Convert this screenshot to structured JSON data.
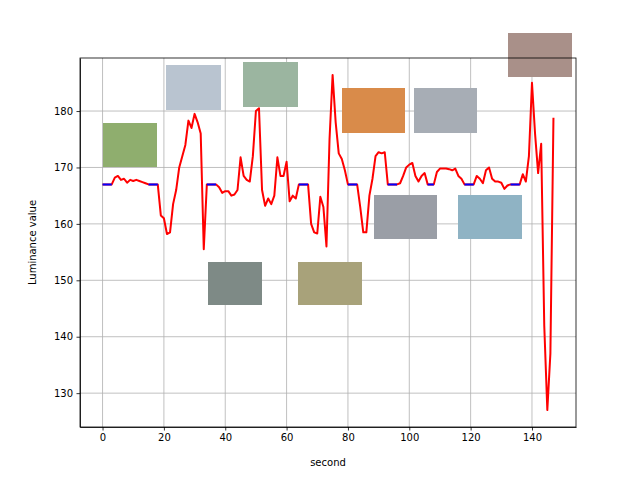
{
  "chart_data": {
    "type": "line",
    "x_label": "second",
    "y_label": "Luminance value",
    "x": [
      0,
      3,
      4,
      5,
      6,
      7,
      8,
      9,
      10,
      11,
      12,
      13,
      14,
      15,
      18,
      19,
      20,
      21,
      22,
      23,
      24,
      25,
      26,
      27,
      28,
      29,
      30,
      31,
      32,
      33,
      34,
      37,
      38,
      39,
      40,
      41,
      42,
      43,
      44,
      45,
      46,
      47,
      48,
      49,
      50,
      51,
      52,
      53,
      54,
      55,
      56,
      57,
      58,
      59,
      60,
      61,
      62,
      63,
      64,
      67,
      68,
      69,
      70,
      71,
      72,
      73,
      74,
      75,
      76,
      77,
      78,
      79,
      80,
      83,
      84,
      85,
      86,
      87,
      88,
      89,
      90,
      91,
      92,
      93,
      96,
      97,
      98,
      99,
      100,
      101,
      102,
      103,
      104,
      105,
      106,
      108,
      109,
      110,
      111,
      112,
      113,
      114,
      115,
      116,
      117,
      118,
      121,
      122,
      123,
      124,
      125,
      126,
      127,
      128,
      129,
      130,
      131,
      132,
      133,
      136,
      137,
      138,
      139,
      140,
      141,
      142,
      143,
      144,
      145,
      146,
      147
    ],
    "series": [
      {
        "color": "#ff0000",
        "values": [
          167,
          167,
          168.2,
          168.5,
          167.8,
          168,
          167.3,
          167.8,
          167.6,
          167.8,
          167.6,
          167.4,
          167.2,
          167,
          167,
          161.5,
          161,
          158.2,
          158.5,
          163.5,
          166,
          170,
          172,
          174,
          178.3,
          177,
          179.5,
          178,
          176,
          155.5,
          167,
          167,
          166.5,
          165.5,
          165.8,
          165.8,
          165,
          165.2,
          166,
          171.8,
          168.5,
          167.8,
          167.5,
          172,
          180,
          180.5,
          166,
          163.2,
          164.5,
          163.5,
          165,
          171.8,
          168.5,
          168.5,
          171,
          164,
          165,
          164.5,
          167,
          167,
          160,
          158.5,
          158.3,
          164.8,
          163,
          156,
          175,
          186.4,
          178,
          172.5,
          171.5,
          169.5,
          167,
          167,
          163,
          158.5,
          158.5,
          165,
          168,
          172,
          172.7,
          172.5,
          172.7,
          167,
          167,
          167.2,
          168.5,
          170,
          170.5,
          170.8,
          168.5,
          167.5,
          168.5,
          169,
          167,
          167,
          169.2,
          169.8,
          169.8,
          169.8,
          169.7,
          169.5,
          169.8,
          168.5,
          168,
          167,
          167,
          168.5,
          168,
          167.2,
          169.5,
          170,
          168,
          167.5,
          167.5,
          167.3,
          166.2,
          166.8,
          167,
          167,
          168.8,
          167.5,
          172,
          185,
          176,
          169,
          174.2,
          142,
          127,
          137,
          178.8
        ]
      },
      {
        "color": "#0000ff",
        "values": [
          167,
          167,
          null,
          null,
          null,
          null,
          null,
          null,
          null,
          null,
          null,
          null,
          null,
          167,
          167,
          null,
          null,
          null,
          null,
          null,
          null,
          null,
          null,
          null,
          null,
          null,
          null,
          null,
          null,
          null,
          167,
          167,
          null,
          null,
          null,
          null,
          null,
          null,
          null,
          null,
          null,
          null,
          null,
          null,
          null,
          null,
          null,
          null,
          null,
          null,
          null,
          null,
          null,
          null,
          null,
          null,
          null,
          null,
          167,
          167,
          null,
          null,
          null,
          null,
          null,
          null,
          null,
          null,
          null,
          null,
          null,
          null,
          167,
          167,
          null,
          null,
          null,
          null,
          null,
          null,
          null,
          null,
          null,
          167,
          167,
          null,
          null,
          null,
          null,
          null,
          null,
          null,
          null,
          null,
          167,
          167,
          null,
          null,
          null,
          null,
          null,
          null,
          null,
          null,
          null,
          167,
          167,
          null,
          null,
          null,
          null,
          null,
          null,
          null,
          null,
          null,
          null,
          null,
          167,
          167,
          null,
          null,
          null,
          null,
          null,
          null,
          null,
          null,
          null,
          null,
          null
        ]
      }
    ],
    "xlim": [
      -7.35,
      154.35
    ],
    "ylim": [
      124,
      189.4
    ],
    "xticks": [
      0,
      20,
      40,
      60,
      80,
      100,
      120,
      140
    ],
    "yticks": [
      130,
      140,
      150,
      160,
      170,
      180
    ],
    "grid": true
  }
}
